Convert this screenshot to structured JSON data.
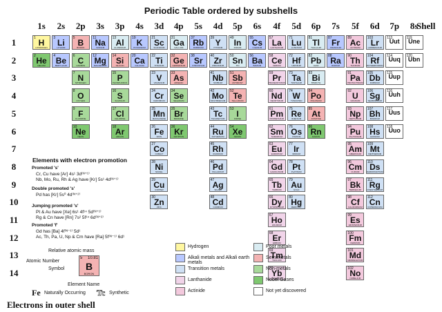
{
  "title": "Periodic Table ordered by subshells",
  "columns": [
    "1s",
    "2s",
    "2p",
    "3s",
    "3p",
    "4s",
    "3d",
    "4p",
    "5s",
    "4d",
    "5p",
    "6s",
    "4f",
    "5d",
    "6p",
    "7s",
    "5f",
    "6d",
    "7p",
    "8s"
  ],
  "shell_header": "Shell",
  "rows": [
    "1",
    "2",
    "3",
    "4",
    "5",
    "6",
    "7",
    "8",
    "9",
    "10",
    "11",
    "12",
    "13",
    "14"
  ],
  "footer": "Electrons in outer shell",
  "colors": {
    "hydrogen": "#fff7a0",
    "alkali": "#b8c8ff",
    "transition": "#cfe0f4",
    "lanthanide": "#f1d4e9",
    "actinide": "#f3c9dd",
    "poor": "#d9ecf2",
    "semi": "#f4b3b3",
    "nonmetal": "#a8d99a",
    "noble": "#7fc870",
    "undiscovered": "#ffffff"
  },
  "elements": [
    {
      "c": 0,
      "r": 0,
      "s": "H",
      "z": "1",
      "n": "HYDROGEN",
      "cat": "hydrogen"
    },
    {
      "c": 1,
      "r": 0,
      "s": "Li",
      "z": "3",
      "n": "LITHIUM",
      "cat": "alkali"
    },
    {
      "c": 2,
      "r": 0,
      "s": "B",
      "z": "5",
      "n": "BORON",
      "cat": "semi"
    },
    {
      "c": 3,
      "r": 0,
      "s": "Na",
      "z": "11",
      "n": "SODIUM",
      "cat": "alkali"
    },
    {
      "c": 4,
      "r": 0,
      "s": "Al",
      "z": "13",
      "n": "ALUMINIUM",
      "cat": "poor"
    },
    {
      "c": 5,
      "r": 0,
      "s": "K",
      "z": "19",
      "n": "POTASSIUM",
      "cat": "alkali"
    },
    {
      "c": 6,
      "r": 0,
      "s": "Sc",
      "z": "21",
      "n": "SCANDIUM",
      "cat": "transition"
    },
    {
      "c": 7,
      "r": 0,
      "s": "Ga",
      "z": "31",
      "n": "GALLIUM",
      "cat": "poor"
    },
    {
      "c": 8,
      "r": 0,
      "s": "Rb",
      "z": "37",
      "n": "RUBIDIUM",
      "cat": "alkali"
    },
    {
      "c": 9,
      "r": 0,
      "s": "Y",
      "z": "39",
      "n": "YTTRIUM",
      "cat": "transition"
    },
    {
      "c": 10,
      "r": 0,
      "s": "In",
      "z": "49",
      "n": "INDIUM",
      "cat": "poor"
    },
    {
      "c": 11,
      "r": 0,
      "s": "Cs",
      "z": "55",
      "n": "CAESIUM",
      "cat": "alkali"
    },
    {
      "c": 12,
      "r": 0,
      "s": "La",
      "z": "57",
      "n": "LANTHANUM",
      "cat": "lanthanide"
    },
    {
      "c": 13,
      "r": 0,
      "s": "Lu",
      "z": "71",
      "n": "LUTETIUM",
      "cat": "transition"
    },
    {
      "c": 14,
      "r": 0,
      "s": "Tl",
      "z": "81",
      "n": "THALLIUM",
      "cat": "poor"
    },
    {
      "c": 15,
      "r": 0,
      "s": "Fr",
      "z": "87",
      "n": "FRANCIUM",
      "cat": "alkali"
    },
    {
      "c": 16,
      "r": 0,
      "s": "Ac",
      "z": "89",
      "n": "ACTINIUM",
      "cat": "actinide"
    },
    {
      "c": 17,
      "r": 0,
      "s": "Lr",
      "z": "103",
      "n": "LAWRENCIUM",
      "cat": "transition"
    },
    {
      "c": 18,
      "r": 0,
      "s": "Uut",
      "z": "113",
      "n": "",
      "cat": "undiscovered"
    },
    {
      "c": 19,
      "r": 0,
      "s": "Une",
      "z": "119",
      "n": "",
      "cat": "undiscovered"
    },
    {
      "c": 0,
      "r": 1,
      "s": "He",
      "z": "2",
      "n": "HELIUM",
      "cat": "noble"
    },
    {
      "c": 1,
      "r": 1,
      "s": "Be",
      "z": "4",
      "n": "BERYLLIUM",
      "cat": "alkali"
    },
    {
      "c": 2,
      "r": 1,
      "s": "C",
      "z": "6",
      "n": "CARBON",
      "cat": "nonmetal"
    },
    {
      "c": 3,
      "r": 1,
      "s": "Mg",
      "z": "12",
      "n": "MAGNESIUM",
      "cat": "alkali"
    },
    {
      "c": 4,
      "r": 1,
      "s": "Si",
      "z": "14",
      "n": "SILICON",
      "cat": "semi"
    },
    {
      "c": 5,
      "r": 1,
      "s": "Ca",
      "z": "20",
      "n": "CALCIUM",
      "cat": "alkali"
    },
    {
      "c": 6,
      "r": 1,
      "s": "Ti",
      "z": "22",
      "n": "TITANIUM",
      "cat": "transition"
    },
    {
      "c": 7,
      "r": 1,
      "s": "Ge",
      "z": "32",
      "n": "GERMANIUM",
      "cat": "semi"
    },
    {
      "c": 8,
      "r": 1,
      "s": "Sr",
      "z": "38",
      "n": "STRONTIUM",
      "cat": "alkali"
    },
    {
      "c": 9,
      "r": 1,
      "s": "Zr",
      "z": "40",
      "n": "ZIRCONIUM",
      "cat": "transition"
    },
    {
      "c": 10,
      "r": 1,
      "s": "Sn",
      "z": "50",
      "n": "TIN",
      "cat": "poor"
    },
    {
      "c": 11,
      "r": 1,
      "s": "Ba",
      "z": "56",
      "n": "BARIUM",
      "cat": "alkali"
    },
    {
      "c": 12,
      "r": 1,
      "s": "Ce",
      "z": "58",
      "n": "CERIUM",
      "cat": "lanthanide"
    },
    {
      "c": 13,
      "r": 1,
      "s": "Hf",
      "z": "72",
      "n": "HAFNIUM",
      "cat": "transition"
    },
    {
      "c": 14,
      "r": 1,
      "s": "Pb",
      "z": "82",
      "n": "LEAD",
      "cat": "poor"
    },
    {
      "c": 15,
      "r": 1,
      "s": "Ra",
      "z": "88",
      "n": "RADIUM",
      "cat": "alkali"
    },
    {
      "c": 16,
      "r": 1,
      "s": "Th",
      "z": "90",
      "n": "THORIUM",
      "cat": "actinide"
    },
    {
      "c": 17,
      "r": 1,
      "s": "Rf",
      "z": "104",
      "n": "RUTHERFORDIUM",
      "cat": "transition"
    },
    {
      "c": 18,
      "r": 1,
      "s": "Uuq",
      "z": "114",
      "n": "",
      "cat": "undiscovered"
    },
    {
      "c": 19,
      "r": 1,
      "s": "Ubn",
      "z": "120",
      "n": "",
      "cat": "undiscovered"
    },
    {
      "c": 2,
      "r": 2,
      "s": "N",
      "z": "7",
      "n": "NITROGEN",
      "cat": "nonmetal"
    },
    {
      "c": 4,
      "r": 2,
      "s": "P",
      "z": "15",
      "n": "PHOSPHORUS",
      "cat": "nonmetal"
    },
    {
      "c": 6,
      "r": 2,
      "s": "V",
      "z": "23",
      "n": "VANADIUM",
      "cat": "transition"
    },
    {
      "c": 7,
      "r": 2,
      "s": "As",
      "z": "33",
      "n": "ARSENIC",
      "cat": "semi"
    },
    {
      "c": 9,
      "r": 2,
      "s": "Nb",
      "z": "41",
      "n": "NIOBIUM",
      "cat": "transition"
    },
    {
      "c": 10,
      "r": 2,
      "s": "Sb",
      "z": "51",
      "n": "ANTIMONY",
      "cat": "semi"
    },
    {
      "c": 12,
      "r": 2,
      "s": "Pr",
      "z": "59",
      "n": "PRASEODYMIUM",
      "cat": "lanthanide"
    },
    {
      "c": 13,
      "r": 2,
      "s": "Ta",
      "z": "73",
      "n": "TANTALUM",
      "cat": "transition"
    },
    {
      "c": 14,
      "r": 2,
      "s": "Bi",
      "z": "83",
      "n": "BISMUTH",
      "cat": "poor"
    },
    {
      "c": 16,
      "r": 2,
      "s": "Pa",
      "z": "91",
      "n": "PROTACTINIUM",
      "cat": "actinide"
    },
    {
      "c": 17,
      "r": 2,
      "s": "Db",
      "z": "105",
      "n": "DUBNIUM",
      "cat": "transition"
    },
    {
      "c": 18,
      "r": 2,
      "s": "Uup",
      "z": "115",
      "n": "",
      "cat": "undiscovered"
    },
    {
      "c": 2,
      "r": 3,
      "s": "O",
      "z": "8",
      "n": "OXYGEN",
      "cat": "nonmetal"
    },
    {
      "c": 4,
      "r": 3,
      "s": "S",
      "z": "16",
      "n": "SULPHUR",
      "cat": "nonmetal"
    },
    {
      "c": 6,
      "r": 3,
      "s": "Cr",
      "z": "24",
      "n": "CHROMIUM",
      "cat": "transition"
    },
    {
      "c": 7,
      "r": 3,
      "s": "Se",
      "z": "34",
      "n": "SELENIUM",
      "cat": "nonmetal"
    },
    {
      "c": 9,
      "r": 3,
      "s": "Mo",
      "z": "42",
      "n": "MOLYBDENUM",
      "cat": "transition"
    },
    {
      "c": 10,
      "r": 3,
      "s": "Te",
      "z": "52",
      "n": "TELLURIUM",
      "cat": "semi"
    },
    {
      "c": 12,
      "r": 3,
      "s": "Nd",
      "z": "60",
      "n": "NEODYMIUM",
      "cat": "lanthanide"
    },
    {
      "c": 13,
      "r": 3,
      "s": "W",
      "z": "74",
      "n": "TUNGSTEN",
      "cat": "transition"
    },
    {
      "c": 14,
      "r": 3,
      "s": "Po",
      "z": "84",
      "n": "POLONIUM",
      "cat": "semi"
    },
    {
      "c": 16,
      "r": 3,
      "s": "U",
      "z": "92",
      "n": "URANIUM",
      "cat": "actinide"
    },
    {
      "c": 17,
      "r": 3,
      "s": "Sg",
      "z": "106",
      "n": "SEABORGIUM",
      "cat": "transition"
    },
    {
      "c": 18,
      "r": 3,
      "s": "Uuh",
      "z": "116",
      "n": "",
      "cat": "undiscovered"
    },
    {
      "c": 2,
      "r": 4,
      "s": "F",
      "z": "9",
      "n": "FLUORINE",
      "cat": "nonmetal"
    },
    {
      "c": 4,
      "r": 4,
      "s": "Cl",
      "z": "17",
      "n": "CHLORINE",
      "cat": "nonmetal"
    },
    {
      "c": 6,
      "r": 4,
      "s": "Mn",
      "z": "25",
      "n": "MANGANESE",
      "cat": "transition"
    },
    {
      "c": 7,
      "r": 4,
      "s": "Br",
      "z": "35",
      "n": "BROMINE",
      "cat": "nonmetal"
    },
    {
      "c": 9,
      "r": 4,
      "s": "Tc",
      "z": "43",
      "n": "TECHNETIUM",
      "cat": "transition"
    },
    {
      "c": 10,
      "r": 4,
      "s": "I",
      "z": "53",
      "n": "IODINE",
      "cat": "nonmetal"
    },
    {
      "c": 12,
      "r": 4,
      "s": "Pm",
      "z": "61",
      "n": "PROMETHIUM",
      "cat": "lanthanide"
    },
    {
      "c": 13,
      "r": 4,
      "s": "Re",
      "z": "75",
      "n": "RHENIUM",
      "cat": "transition"
    },
    {
      "c": 14,
      "r": 4,
      "s": "At",
      "z": "85",
      "n": "ASTATINE",
      "cat": "semi"
    },
    {
      "c": 16,
      "r": 4,
      "s": "Np",
      "z": "93",
      "n": "NEPTUNIUM",
      "cat": "actinide"
    },
    {
      "c": 17,
      "r": 4,
      "s": "Bh",
      "z": "107",
      "n": "BOHRIUM",
      "cat": "transition"
    },
    {
      "c": 18,
      "r": 4,
      "s": "Uus",
      "z": "117",
      "n": "",
      "cat": "undiscovered"
    },
    {
      "c": 2,
      "r": 5,
      "s": "Ne",
      "z": "10",
      "n": "NEON",
      "cat": "noble"
    },
    {
      "c": 4,
      "r": 5,
      "s": "Ar",
      "z": "18",
      "n": "ARGON",
      "cat": "noble"
    },
    {
      "c": 6,
      "r": 5,
      "s": "Fe",
      "z": "26",
      "n": "IRON",
      "cat": "transition"
    },
    {
      "c": 7,
      "r": 5,
      "s": "Kr",
      "z": "36",
      "n": "KRYPTON",
      "cat": "noble"
    },
    {
      "c": 9,
      "r": 5,
      "s": "Ru",
      "z": "44",
      "n": "RUTHENIUM",
      "cat": "transition"
    },
    {
      "c": 10,
      "r": 5,
      "s": "Xe",
      "z": "54",
      "n": "XENON",
      "cat": "noble"
    },
    {
      "c": 12,
      "r": 5,
      "s": "Sm",
      "z": "62",
      "n": "SAMARIUM",
      "cat": "lanthanide"
    },
    {
      "c": 13,
      "r": 5,
      "s": "Os",
      "z": "76",
      "n": "OSMIUM",
      "cat": "transition"
    },
    {
      "c": 14,
      "r": 5,
      "s": "Rn",
      "z": "86",
      "n": "RADON",
      "cat": "noble"
    },
    {
      "c": 16,
      "r": 5,
      "s": "Pu",
      "z": "94",
      "n": "PLUTONIUM",
      "cat": "actinide"
    },
    {
      "c": 17,
      "r": 5,
      "s": "Hs",
      "z": "108",
      "n": "HASSIUM",
      "cat": "transition"
    },
    {
      "c": 18,
      "r": 5,
      "s": "Uuo",
      "z": "118",
      "n": "",
      "cat": "undiscovered"
    },
    {
      "c": 6,
      "r": 6,
      "s": "Co",
      "z": "27",
      "n": "COBALT",
      "cat": "transition"
    },
    {
      "c": 9,
      "r": 6,
      "s": "Rh",
      "z": "45",
      "n": "RHODIUM",
      "cat": "transition"
    },
    {
      "c": 12,
      "r": 6,
      "s": "Eu",
      "z": "63",
      "n": "EUROPIUM",
      "cat": "lanthanide"
    },
    {
      "c": 13,
      "r": 6,
      "s": "Ir",
      "z": "77",
      "n": "IRIDIUM",
      "cat": "transition"
    },
    {
      "c": 16,
      "r": 6,
      "s": "Am",
      "z": "95",
      "n": "AMERICIUM",
      "cat": "actinide"
    },
    {
      "c": 17,
      "r": 6,
      "s": "Mt",
      "z": "109",
      "n": "MEITNERIUM",
      "cat": "transition"
    },
    {
      "c": 6,
      "r": 7,
      "s": "Ni",
      "z": "28",
      "n": "NICKEL",
      "cat": "transition"
    },
    {
      "c": 9,
      "r": 7,
      "s": "Pd",
      "z": "46",
      "n": "PALLADIUM",
      "cat": "transition"
    },
    {
      "c": 12,
      "r": 7,
      "s": "Gd",
      "z": "64",
      "n": "GADOLINIUM",
      "cat": "lanthanide"
    },
    {
      "c": 13,
      "r": 7,
      "s": "Pt",
      "z": "78",
      "n": "PLATINUM",
      "cat": "transition"
    },
    {
      "c": 16,
      "r": 7,
      "s": "Cm",
      "z": "96",
      "n": "CURIUM",
      "cat": "actinide"
    },
    {
      "c": 17,
      "r": 7,
      "s": "Ds",
      "z": "110",
      "n": "DARMSTADTIUM",
      "cat": "transition"
    },
    {
      "c": 6,
      "r": 8,
      "s": "Cu",
      "z": "29",
      "n": "COPPER",
      "cat": "transition"
    },
    {
      "c": 9,
      "r": 8,
      "s": "Ag",
      "z": "47",
      "n": "SILVER",
      "cat": "transition"
    },
    {
      "c": 12,
      "r": 8,
      "s": "Tb",
      "z": "65",
      "n": "TERBIUM",
      "cat": "lanthanide"
    },
    {
      "c": 13,
      "r": 8,
      "s": "Au",
      "z": "79",
      "n": "GOLD",
      "cat": "transition"
    },
    {
      "c": 16,
      "r": 8,
      "s": "Bk",
      "z": "97",
      "n": "BERKELIUM",
      "cat": "actinide"
    },
    {
      "c": 17,
      "r": 8,
      "s": "Rg",
      "z": "111",
      "n": "ROENTGENIUM",
      "cat": "transition"
    },
    {
      "c": 6,
      "r": 9,
      "s": "Zn",
      "z": "30",
      "n": "ZINC",
      "cat": "transition"
    },
    {
      "c": 9,
      "r": 9,
      "s": "Cd",
      "z": "48",
      "n": "CADMIUM",
      "cat": "transition"
    },
    {
      "c": 12,
      "r": 9,
      "s": "Dy",
      "z": "66",
      "n": "DYSPROSIUM",
      "cat": "lanthanide"
    },
    {
      "c": 13,
      "r": 9,
      "s": "Hg",
      "z": "80",
      "n": "MERCURY",
      "cat": "transition"
    },
    {
      "c": 16,
      "r": 9,
      "s": "Cf",
      "z": "98",
      "n": "CALIFORNIUM",
      "cat": "actinide"
    },
    {
      "c": 17,
      "r": 9,
      "s": "Cn",
      "z": "112",
      "n": "COPERNICIUM",
      "cat": "transition"
    },
    {
      "c": 12,
      "r": 10,
      "s": "Ho",
      "z": "67",
      "n": "HOLMIUM",
      "cat": "lanthanide"
    },
    {
      "c": 16,
      "r": 10,
      "s": "Es",
      "z": "99",
      "n": "EINSTEINIUM",
      "cat": "actinide"
    },
    {
      "c": 12,
      "r": 11,
      "s": "Er",
      "z": "68",
      "n": "ERBIUM",
      "cat": "lanthanide"
    },
    {
      "c": 16,
      "r": 11,
      "s": "Fm",
      "z": "100",
      "n": "FERMIUM",
      "cat": "actinide"
    },
    {
      "c": 12,
      "r": 12,
      "s": "Tm",
      "z": "69",
      "n": "THULIUM",
      "cat": "lanthanide"
    },
    {
      "c": 16,
      "r": 12,
      "s": "Md",
      "z": "101",
      "n": "MENDELEVIUM",
      "cat": "actinide"
    },
    {
      "c": 12,
      "r": 13,
      "s": "Yb",
      "z": "70",
      "n": "YTTERBIUM",
      "cat": "lanthanide"
    },
    {
      "c": 16,
      "r": 13,
      "s": "No",
      "z": "102",
      "n": "NOBELIUM",
      "cat": "actinide"
    }
  ],
  "notes": {
    "title": "Elements with electron promotion",
    "promoted_s": "Promoted 's'",
    "promoted_s_l1": "Cr, Cu have [Ar] 4s¹ 3d⁽ᴺ⁺¹⁾",
    "promoted_s_l2": "Nb, Mo, Ru, Rh & Ag have [Kr] 5s¹ 4d⁽ᴺ⁺¹⁾",
    "double_s": "Double promoted 's'",
    "double_s_l1": "Pd has [Kr] 5s⁰ 4d⁽ᴺ⁺²⁾",
    "jumping_s": "Jumping promoted 's'",
    "jumping_s_l1": "Pt & Au have [Xe] 6s¹ 4f¹⁴ 5d⁽ᴺ⁺¹⁾",
    "jumping_s_l2": "Rg & Cn have [Rn] 7s² 5f¹⁴ 6d⁽ᴺ⁺²⁾",
    "promoted_f": "Promoted 'f'",
    "promoted_f_l1": "Gd has [Ba] 4f⁽ᴺ⁻¹⁾ 5d¹",
    "promoted_f_l2": "Ac, Th, Pa, U, Np & Cm have [Ra] 5f⁽ᴺ⁻¹⁾ 6d¹"
  },
  "key": {
    "relative_mass": "Relative atomic mass",
    "atomic_number": "Atomic Number",
    "symbol": "Symbol",
    "element_name": "Element Name",
    "sample_z": "5",
    "sample_mass": "10.81",
    "sample_symbol": "B",
    "sample_name": "BORON",
    "natural_symbol": "Fe",
    "natural_label": "Naturally Occurring",
    "synthetic_symbol": "Tc",
    "synthetic_label": "Synthetic"
  },
  "legend": [
    {
      "label": "Hydrogen",
      "cat": "hydrogen"
    },
    {
      "label": "Alkali metals and Alkali earth metals",
      "cat": "alkali"
    },
    {
      "label": "Transition metals",
      "cat": "transition"
    },
    {
      "label": "Lanthanide",
      "cat": "lanthanide"
    },
    {
      "label": "Actinide",
      "cat": "actinide"
    },
    {
      "label": "Poor metals",
      "cat": "poor"
    },
    {
      "label": "Semimetals",
      "cat": "semi"
    },
    {
      "label": "Non-metals",
      "cat": "nonmetal"
    },
    {
      "label": "Nobel Gases",
      "cat": "noble"
    },
    {
      "label": "Not yet discovered",
      "cat": "undiscovered"
    }
  ]
}
